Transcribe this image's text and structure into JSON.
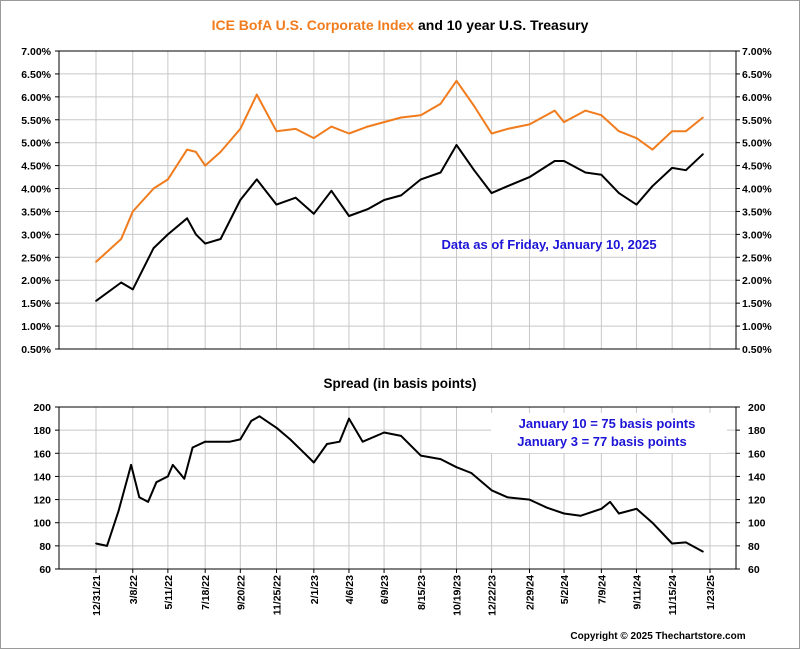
{
  "chart_data": [
    {
      "type": "line",
      "title_parts": [
        {
          "text": "ICE BofA U.S. Corporate Index",
          "color": "#f07c1e"
        },
        {
          "text": " and 10 year U.S. Treasury",
          "color": "#000000"
        }
      ],
      "y_tick_labels": [
        "0.50%",
        "1.00%",
        "1.50%",
        "2.00%",
        "2.50%",
        "3.00%",
        "3.50%",
        "4.00%",
        "4.50%",
        "5.00%",
        "5.50%",
        "6.00%",
        "6.50%",
        "7.00%"
      ],
      "ylim": [
        0.5,
        7.0
      ],
      "grid": true,
      "annotation": "Data as of Friday, January 10, 2025",
      "series": [
        {
          "color": "#f07c1e",
          "x": [
            "2021-12-31",
            "2022-02-15",
            "2022-03-08",
            "2022-04-15",
            "2022-05-11",
            "2022-06-15",
            "2022-07-01",
            "2022-07-18",
            "2022-08-15",
            "2022-09-20",
            "2022-10-20",
            "2022-11-25",
            "2022-12-30",
            "2023-02-01",
            "2023-03-05",
            "2023-04-06",
            "2023-05-10",
            "2023-06-09",
            "2023-07-10",
            "2023-08-15",
            "2023-09-20",
            "2023-10-19",
            "2023-11-20",
            "2023-12-22",
            "2024-01-20",
            "2024-02-29",
            "2024-04-15",
            "2024-05-02",
            "2024-06-10",
            "2024-07-09",
            "2024-08-10",
            "2024-09-11",
            "2024-10-10",
            "2024-11-15",
            "2024-12-10",
            "2025-01-10"
          ],
          "values": [
            2.4,
            2.9,
            3.5,
            4.0,
            4.2,
            4.85,
            4.8,
            4.5,
            4.8,
            5.3,
            6.05,
            5.25,
            5.3,
            5.1,
            5.35,
            5.2,
            5.35,
            5.45,
            5.55,
            5.6,
            5.85,
            6.35,
            5.8,
            5.2,
            5.3,
            5.4,
            5.7,
            5.45,
            5.7,
            5.6,
            5.25,
            5.1,
            4.85,
            5.25,
            5.25,
            5.55
          ]
        },
        {
          "color": "#000000",
          "x": [
            "2021-12-31",
            "2022-02-15",
            "2022-03-08",
            "2022-04-15",
            "2022-05-11",
            "2022-06-15",
            "2022-07-01",
            "2022-07-18",
            "2022-08-15",
            "2022-09-20",
            "2022-10-20",
            "2022-11-25",
            "2022-12-30",
            "2023-02-01",
            "2023-03-05",
            "2023-04-06",
            "2023-05-10",
            "2023-06-09",
            "2023-07-10",
            "2023-08-15",
            "2023-09-20",
            "2023-10-19",
            "2023-11-20",
            "2023-12-22",
            "2024-01-20",
            "2024-02-29",
            "2024-04-15",
            "2024-05-02",
            "2024-06-10",
            "2024-07-09",
            "2024-08-10",
            "2024-09-11",
            "2024-10-10",
            "2024-11-15",
            "2024-12-10",
            "2025-01-10"
          ],
          "values": [
            1.55,
            1.95,
            1.8,
            2.7,
            3.0,
            3.35,
            3.0,
            2.8,
            2.9,
            3.75,
            4.2,
            3.65,
            3.8,
            3.45,
            3.95,
            3.4,
            3.55,
            3.75,
            3.85,
            4.2,
            4.35,
            4.95,
            4.4,
            3.9,
            4.05,
            4.25,
            4.6,
            4.6,
            4.35,
            4.3,
            3.9,
            3.65,
            4.05,
            4.45,
            4.4,
            4.75
          ]
        }
      ]
    },
    {
      "type": "line",
      "title": "Spread (in basis points)",
      "y_tick_labels": [
        "60",
        "80",
        "100",
        "120",
        "140",
        "160",
        "180",
        "200"
      ],
      "ylim": [
        60,
        200
      ],
      "grid": true,
      "annotations": [
        "January 10 = 75 basis points",
        "January 3 = 77 basis points"
      ],
      "x_tick_labels": [
        "12/31/21",
        "3/8/22",
        "5/11/22",
        "7/18/22",
        "9/20/22",
        "11/25/22",
        "2/1/23",
        "4/6/23",
        "6/9/23",
        "8/15/23",
        "10/19/23",
        "12/22/23",
        "2/29/24",
        "5/2/24",
        "7/9/24",
        "9/11/24",
        "11/15/24",
        "1/23/25"
      ],
      "series": [
        {
          "color": "#000000",
          "x": [
            "2021-12-31",
            "2022-01-20",
            "2022-02-10",
            "2022-03-05",
            "2022-03-20",
            "2022-04-05",
            "2022-04-20",
            "2022-05-11",
            "2022-05-20",
            "2022-06-10",
            "2022-06-25",
            "2022-07-18",
            "2022-08-10",
            "2022-09-01",
            "2022-09-20",
            "2022-10-10",
            "2022-10-25",
            "2022-11-25",
            "2022-12-20",
            "2023-01-15",
            "2023-02-01",
            "2023-02-25",
            "2023-03-20",
            "2023-04-06",
            "2023-05-01",
            "2023-06-09",
            "2023-07-10",
            "2023-08-15",
            "2023-09-20",
            "2023-10-19",
            "2023-11-15",
            "2023-12-22",
            "2024-01-20",
            "2024-02-29",
            "2024-04-01",
            "2024-05-02",
            "2024-06-01",
            "2024-07-09",
            "2024-07-25",
            "2024-08-10",
            "2024-09-11",
            "2024-10-10",
            "2024-11-15",
            "2024-12-10",
            "2025-01-10"
          ],
          "values": [
            82,
            80,
            110,
            150,
            122,
            118,
            135,
            140,
            150,
            138,
            165,
            170,
            170,
            170,
            172,
            188,
            192,
            182,
            172,
            160,
            152,
            168,
            170,
            190,
            170,
            178,
            175,
            158,
            155,
            148,
            143,
            128,
            122,
            120,
            113,
            108,
            106,
            112,
            118,
            108,
            112,
            100,
            82,
            83,
            75
          ]
        }
      ]
    }
  ],
  "copyright": "Copyright © 2025 Thechartstore.com"
}
